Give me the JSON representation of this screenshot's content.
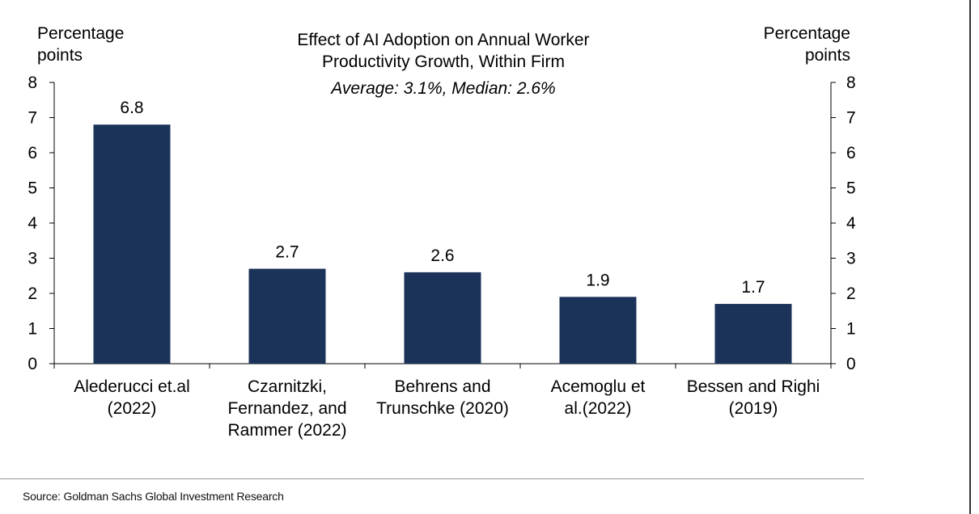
{
  "chart_data": {
    "type": "bar",
    "title_lines": [
      "Effect of AI Adoption on Annual Worker",
      "Productivity Growth, Within Firm"
    ],
    "subtitle": "Average: 3.1%, Median: 2.6%",
    "ylabel_left": [
      "Percentage",
      "points"
    ],
    "ylabel_right": [
      "Percentage",
      "points"
    ],
    "ylim": [
      0,
      8
    ],
    "yticks": [
      0,
      1,
      2,
      3,
      4,
      5,
      6,
      7,
      8
    ],
    "categories": [
      [
        "Alederucci et.al",
        "(2022)"
      ],
      [
        "Czarnitzki,",
        "Fernandez, and",
        "Rammer (2022)"
      ],
      [
        "Behrens and",
        "Trunschke (2020)"
      ],
      [
        "Acemoglu et",
        "al.(2022)"
      ],
      [
        "Bessen and Righi",
        "(2019)"
      ]
    ],
    "values": [
      6.8,
      2.7,
      2.6,
      1.9,
      1.7
    ],
    "value_labels": [
      "6.8",
      "2.7",
      "2.6",
      "1.9",
      "1.7"
    ],
    "bar_color": "#1b3358",
    "grid": false,
    "legend": "none"
  },
  "source": "Source: Goldman Sachs Global Investment Research"
}
